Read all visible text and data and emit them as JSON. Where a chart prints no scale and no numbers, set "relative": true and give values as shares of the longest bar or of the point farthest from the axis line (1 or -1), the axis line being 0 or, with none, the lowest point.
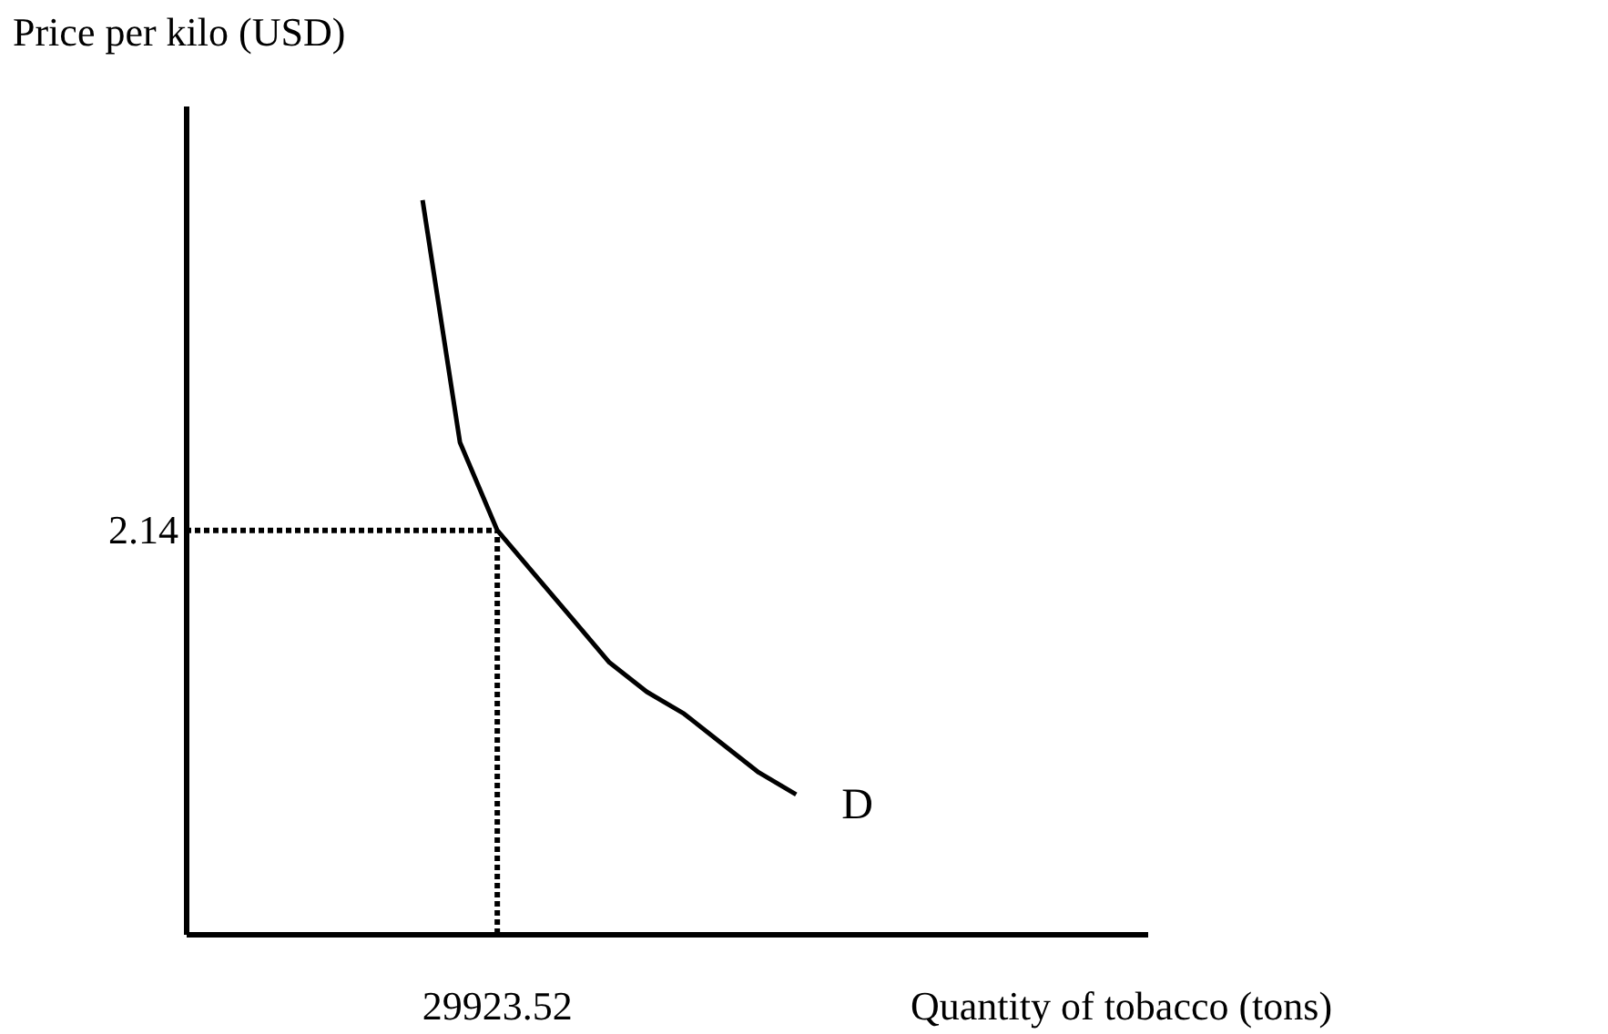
{
  "chart_data": {
    "type": "line",
    "relative": true,
    "xlabel": "Quantity of tobacco (tons)",
    "ylabel": "Price per kilo (USD)",
    "categories": [
      null,
      null,
      null,
      null,
      null,
      null,
      null,
      null,
      null,
      null,
      null
    ],
    "series": [
      {
        "name": "D",
        "color": "#000000",
        "values": [
          1.0,
          0.67,
          0.55,
          0.49,
          0.43,
          0.37,
          0.33,
          0.3,
          0.26,
          0.22,
          0.19
        ]
      }
    ],
    "ref_lines": [
      {
        "axis": "y",
        "value": 0.55,
        "line_style": "dotted",
        "color": "#000000"
      }
    ],
    "annotations": [
      "2.14",
      "29923.52"
    ],
    "marker": "none",
    "line_style": "solid"
  }
}
